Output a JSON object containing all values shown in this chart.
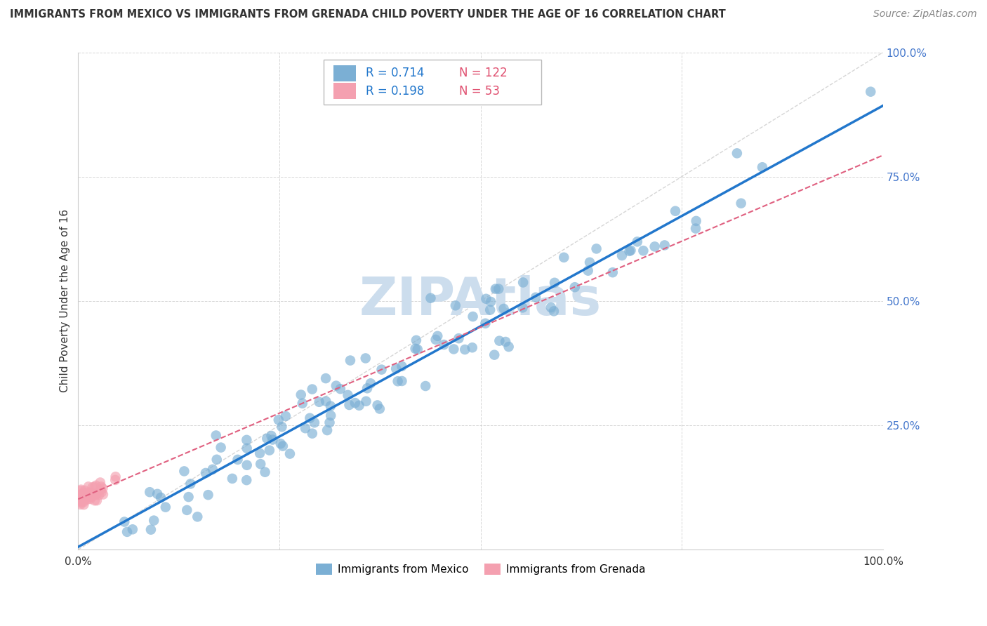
{
  "title": "IMMIGRANTS FROM MEXICO VS IMMIGRANTS FROM GRENADA CHILD POVERTY UNDER THE AGE OF 16 CORRELATION CHART",
  "source": "Source: ZipAtlas.com",
  "ylabel": "Child Poverty Under the Age of 16",
  "R_mexico": 0.714,
  "N_mexico": 122,
  "R_grenada": 0.198,
  "N_grenada": 53,
  "xlim": [
    0,
    1
  ],
  "ylim": [
    0,
    1
  ],
  "color_mexico": "#7bafd4",
  "color_grenada": "#f4a0b0",
  "line_color_mexico": "#2277cc",
  "line_color_grenada": "#e06080",
  "watermark": "ZIPAtlas",
  "watermark_color": "#ccdded",
  "legend_labels": [
    "Immigrants from Mexico",
    "Immigrants from Grenada"
  ],
  "background_color": "#ffffff",
  "grid_color": "#cccccc",
  "tick_color_right": "#4477cc",
  "mexico_intercept": 0.02,
  "mexico_slope": 0.86,
  "grenada_intercept": 0.1,
  "grenada_slope": 0.8
}
